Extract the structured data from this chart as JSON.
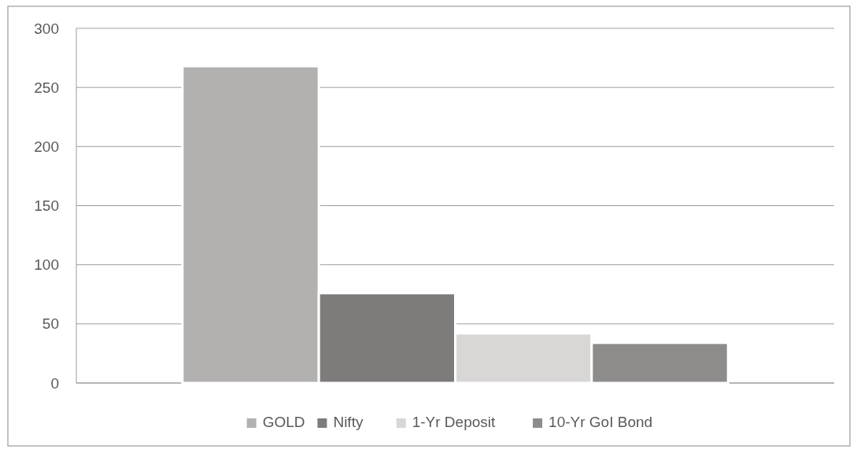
{
  "chart_data": {
    "type": "bar",
    "categories": [
      null
    ],
    "series": [
      {
        "name": "GOLD",
        "color": "#b3b0b0",
        "values": [
          268
        ]
      },
      {
        "name": "Nifty",
        "color": "#7e7b7b",
        "values": [
          76
        ]
      },
      {
        "name": "1-Yr Deposit",
        "color": "#d9d6d6",
        "values": [
          42
        ]
      },
      {
        "name": "10-Yr GoI Bond",
        "color": "#8e8b8b",
        "values": [
          34
        ]
      }
    ],
    "ylim": [
      0,
      300
    ],
    "yticks": [
      0,
      50,
      100,
      150,
      200,
      250,
      300
    ],
    "grid": "y",
    "legend": "bottom"
  }
}
